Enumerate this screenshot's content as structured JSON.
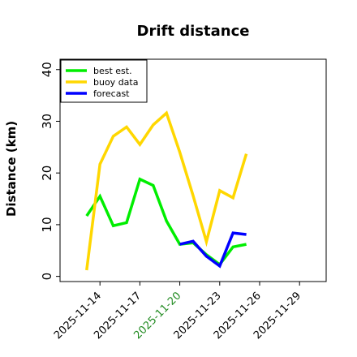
{
  "chart_data": {
    "type": "line",
    "title": "Drift distance",
    "xlabel": "",
    "ylabel": "Distance (km)",
    "xlim": [
      "2025-11-11",
      "2025-11-31"
    ],
    "ylim": [
      -1,
      42
    ],
    "xticks": [
      {
        "pos": "2025-11-14",
        "label": "2025-11-14",
        "color": "#000000"
      },
      {
        "pos": "2025-11-17",
        "label": "2025-11-17",
        "color": "#000000"
      },
      {
        "pos": "2025-11-20",
        "label": "2025-11-20",
        "color": "#228b22"
      },
      {
        "pos": "2025-11-23",
        "label": "2025-11-23",
        "color": "#000000"
      },
      {
        "pos": "2025-11-26",
        "label": "2025-11-26",
        "color": "#000000"
      },
      {
        "pos": "2025-11-29",
        "label": "2025-11-29",
        "color": "#000000"
      }
    ],
    "yticks": [
      0,
      10,
      20,
      30,
      40
    ],
    "grid": false,
    "legend": "top-left",
    "series": [
      {
        "name": "best est.",
        "color": "#00ee00",
        "points": [
          [
            "2025-11-13",
            11.7
          ],
          [
            "2025-11-14",
            15.5
          ],
          [
            "2025-11-15",
            9.8
          ],
          [
            "2025-11-16",
            10.4
          ],
          [
            "2025-11-17",
            18.8
          ],
          [
            "2025-11-18",
            17.6
          ],
          [
            "2025-11-19",
            10.7
          ],
          [
            "2025-11-20",
            6.2
          ],
          [
            "2025-11-21",
            6.5
          ],
          [
            "2025-11-22",
            4.2
          ],
          [
            "2025-11-23",
            2.3
          ],
          [
            "2025-11-24",
            5.7
          ],
          [
            "2025-11-25",
            6.2
          ]
        ]
      },
      {
        "name": "buoy data",
        "color": "#ffd700",
        "points": [
          [
            "2025-11-13",
            1.2
          ],
          [
            "2025-11-14",
            21.7
          ],
          [
            "2025-11-15",
            27.1
          ],
          [
            "2025-11-16",
            28.9
          ],
          [
            "2025-11-17",
            25.5
          ],
          [
            "2025-11-18",
            29.3
          ],
          [
            "2025-11-19",
            31.6
          ],
          [
            "2025-11-20",
            24.0
          ],
          [
            "2025-11-21",
            15.6
          ],
          [
            "2025-11-22",
            6.7
          ],
          [
            "2025-11-23",
            16.6
          ],
          [
            "2025-11-24",
            15.2
          ],
          [
            "2025-11-25",
            23.7
          ]
        ]
      },
      {
        "name": "forecast",
        "color": "#0000ff",
        "points": [
          [
            "2025-11-20",
            6.2
          ],
          [
            "2025-11-21",
            6.8
          ],
          [
            "2025-11-22",
            3.9
          ],
          [
            "2025-11-23",
            2.0
          ],
          [
            "2025-11-24",
            8.4
          ],
          [
            "2025-11-25",
            8.1
          ]
        ]
      }
    ]
  }
}
